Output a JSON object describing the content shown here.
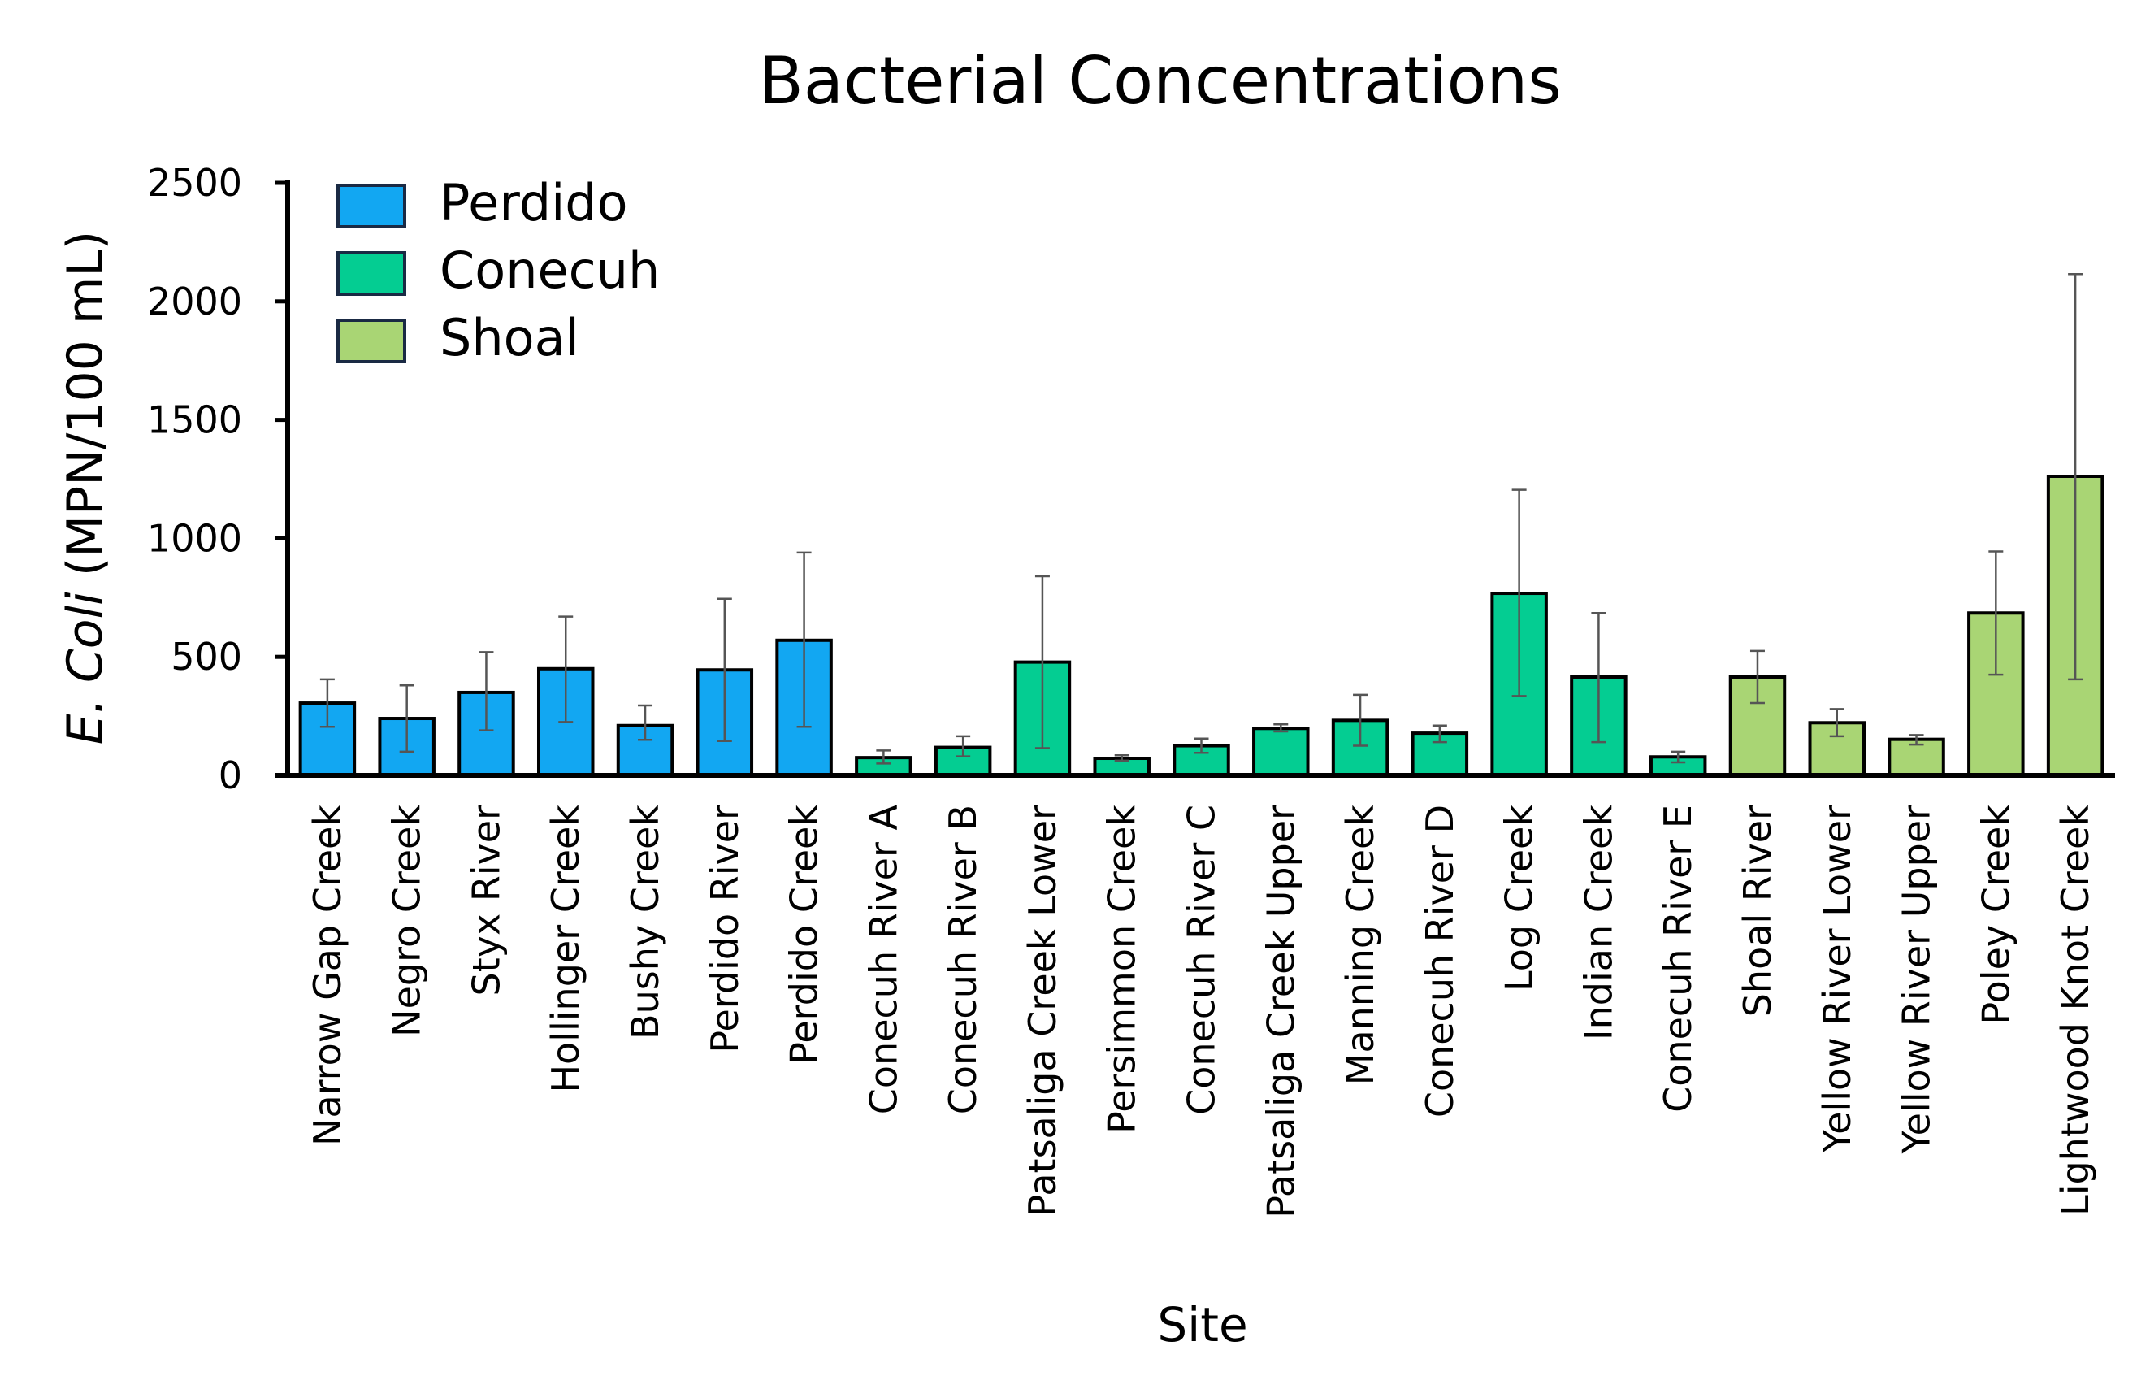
{
  "chart_data": {
    "type": "bar",
    "title": "Bacterial Concentrations",
    "xlabel": "Site",
    "ylabel_italic": "E. Coli",
    "ylabel_rest": " (MPN/100 mL)",
    "ylim": [
      0,
      2500
    ],
    "yticks": [
      0,
      500,
      1000,
      1500,
      2000,
      2500
    ],
    "grid": false,
    "legend_position": "top-left",
    "legend": [
      {
        "name": "Perdido",
        "color": "#12a7f2"
      },
      {
        "name": "Conecuh",
        "color": "#04cd92"
      },
      {
        "name": "Shoal",
        "color": "#a9d574"
      }
    ],
    "categories": [
      "Narrow Gap Creek",
      "Negro Creek",
      "Styx River",
      "Hollinger Creek",
      "Bushy Creek",
      "Perdido River",
      "Perdido Creek",
      "Conecuh River A",
      "Conecuh River B",
      "Patsaliga Creek Lower",
      "Persimmon Creek",
      "Conecuh River C",
      "Patsaliga Creek Upper",
      "Manning Creek",
      "Conecuh River D",
      "Log Creek",
      "Indian Creek",
      "Conecuh River E",
      "Shoal River",
      "Yellow River Lower",
      "Yellow River Upper",
      "Poley Creek",
      "Lightwood Knot Creek"
    ],
    "groups": [
      0,
      0,
      0,
      0,
      0,
      0,
      0,
      1,
      1,
      1,
      1,
      1,
      1,
      1,
      1,
      1,
      1,
      1,
      2,
      2,
      2,
      2,
      2
    ],
    "values": [
      305,
      240,
      350,
      450,
      210,
      445,
      570,
      75,
      118,
      478,
      72,
      125,
      198,
      232,
      178,
      768,
      415,
      78,
      415,
      222,
      152,
      685,
      1262
    ],
    "error": [
      [
        205,
        405
      ],
      [
        100,
        380
      ],
      [
        190,
        520
      ],
      [
        225,
        670
      ],
      [
        150,
        295
      ],
      [
        145,
        745
      ],
      [
        205,
        940
      ],
      [
        50,
        105
      ],
      [
        80,
        165
      ],
      [
        115,
        840
      ],
      [
        62,
        85
      ],
      [
        95,
        155
      ],
      [
        185,
        215
      ],
      [
        125,
        340
      ],
      [
        140,
        210
      ],
      [
        335,
        1205
      ],
      [
        140,
        685
      ],
      [
        55,
        100
      ],
      [
        305,
        525
      ],
      [
        165,
        280
      ],
      [
        130,
        170
      ],
      [
        425,
        945
      ],
      [
        405,
        2115
      ]
    ]
  }
}
